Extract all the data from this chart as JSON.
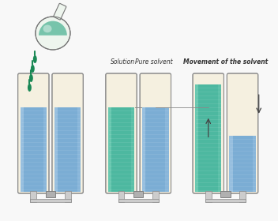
{
  "labels": {
    "solution": "Solution",
    "pure_solvent": "Pure solvent",
    "movement": "Movement of the solvent"
  },
  "colors": {
    "blue_liquid": "#7badd4",
    "blue_liquid_light": "#aacce8",
    "teal_liquid": "#4db8a0",
    "teal_liquid_light": "#7dd4bc",
    "air_space": "#f5f0e0",
    "air_space2": "#ece8d5",
    "glass_edge": "#999999",
    "flask_glass": "#d8ecd8",
    "flask_glass2": "#eef5ee",
    "flask_liquid": "#5ab89a",
    "drop_color": "#1a8855",
    "membrane_color": "#aaaaaa",
    "background": "#f8f8f8",
    "arrow_color": "#444444",
    "level_line": "#888888",
    "cylinder_bg": "#dde8f0"
  },
  "layout": {
    "fig_w": 3.52,
    "fig_h": 2.8,
    "dpi": 100
  }
}
